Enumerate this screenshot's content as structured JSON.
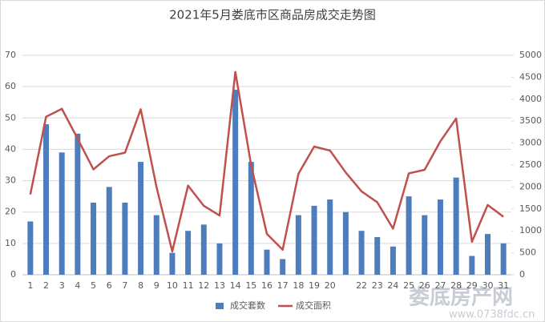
{
  "chart_data": {
    "type": "bar",
    "title": "2021年5月娄底市区商品房成交走势图",
    "categories": [
      "1",
      "2",
      "3",
      "4",
      "5",
      "6",
      "7",
      "8",
      "9",
      "10",
      "11",
      "12",
      "13",
      "14",
      "15",
      "16",
      "17",
      "18",
      "19",
      "20",
      null,
      "22",
      "23",
      "24",
      "25",
      "26",
      "27",
      "28",
      "29",
      "30",
      "31"
    ],
    "series": [
      {
        "name": "成交套数",
        "type": "bar",
        "color": "#4e7dbd",
        "values": [
          17,
          48,
          39,
          45,
          23,
          28,
          23,
          36,
          19,
          7,
          14,
          16,
          10,
          59,
          36,
          8,
          5,
          19,
          22,
          24,
          20,
          14,
          12,
          9,
          25,
          19,
          24,
          31,
          6,
          13,
          10
        ]
      },
      {
        "name": "成交面积",
        "type": "line",
        "axis": "y2",
        "color": "#c0504d",
        "values": [
          1830,
          3600,
          3780,
          3100,
          2400,
          2700,
          2780,
          3770,
          2000,
          530,
          2030,
          1570,
          1350,
          4620,
          2500,
          930,
          570,
          2300,
          2920,
          2830,
          2330,
          1900,
          1650,
          1050,
          2310,
          2390,
          3040,
          3560,
          750,
          1590,
          1320
        ]
      }
    ],
    "ylim": [
      0,
      70
    ],
    "yticks": [
      0,
      10,
      20,
      30,
      40,
      50,
      60,
      70
    ],
    "y2lim": [
      0,
      5000
    ],
    "y2ticks": [
      0,
      500,
      1000,
      1500,
      2000,
      2500,
      3000,
      3500,
      4000,
      4500,
      5000
    ],
    "grid": true,
    "legend": "bottom",
    "watermark": [
      "娄底房产网",
      "www.0738fdc.cn"
    ]
  }
}
